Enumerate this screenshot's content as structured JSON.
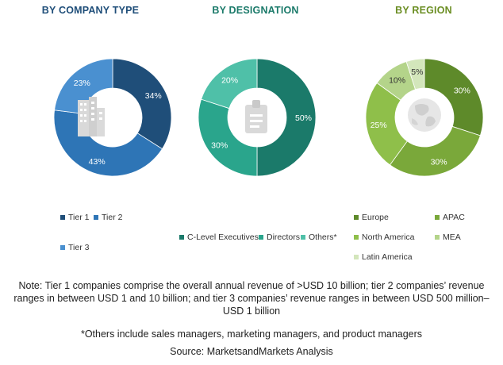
{
  "titles": {
    "company": "BY COMPANY TYPE",
    "designation": "BY DESIGNATION",
    "region": "BY REGION"
  },
  "colors": {
    "company_title": "#1f4e79",
    "designation_title": "#1b7a6a",
    "region_title": "#6b8e23"
  },
  "legends": {
    "company": [
      {
        "label": "Tier 1",
        "color": "#1f4e79"
      },
      {
        "label": "Tier 2",
        "color": "#2e75b6"
      },
      {
        "label": "Tier 3",
        "color": "#4a90d0"
      }
    ],
    "designation": [
      {
        "label": "C-Level Executives",
        "color": "#1b7a6a"
      },
      {
        "label": "Directors",
        "color": "#2aa58c"
      },
      {
        "label": "Others*",
        "color": "#4fc0a8"
      }
    ],
    "region": [
      {
        "label": "Europe",
        "color": "#5e8a2a"
      },
      {
        "label": "APAC",
        "color": "#7aa83a"
      },
      {
        "label": "North America",
        "color": "#8fbf4a"
      },
      {
        "label": "MEA",
        "color": "#b4d48a"
      },
      {
        "label": "Latin America",
        "color": "#d3e6bb"
      }
    ]
  },
  "notes": {
    "tier_note": "Note: Tier 1 companies comprise the overall annual revenue of >USD 10 billion; tier 2 companies’ revenue ranges in between USD 1 and 10 billion; and tier 3 companies’ revenue ranges in between USD 500 million–USD 1 billion",
    "others_note": "*Others include sales managers, marketing managers, and product managers",
    "source": "Source: MarketsandMarkets Analysis"
  },
  "icons": {
    "company": "buildings-icon",
    "designation": "id-badge-icon",
    "region": "globe-icon"
  },
  "chart_data": [
    {
      "type": "pie",
      "title": "BY COMPANY TYPE",
      "categories": [
        "Tier 1",
        "Tier 2",
        "Tier 3"
      ],
      "values": [
        34,
        43,
        23
      ],
      "labels": [
        "34%",
        "43%",
        "23%"
      ],
      "colors": [
        "#1f4e79",
        "#2e75b6",
        "#4a90d0"
      ]
    },
    {
      "type": "pie",
      "title": "BY DESIGNATION",
      "categories": [
        "C-Level Executives",
        "Directors",
        "Others*"
      ],
      "values": [
        50,
        30,
        20
      ],
      "labels": [
        "50%",
        "30%",
        "20%"
      ],
      "colors": [
        "#1b7a6a",
        "#2aa58c",
        "#4fc0a8"
      ]
    },
    {
      "type": "pie",
      "title": "BY REGION",
      "categories": [
        "Europe",
        "APAC",
        "North America",
        "MEA",
        "Latin America"
      ],
      "values": [
        30,
        30,
        25,
        10,
        5
      ],
      "labels": [
        "30%",
        "30%",
        "25%",
        "10%",
        "5%"
      ],
      "colors": [
        "#5e8a2a",
        "#7aa83a",
        "#8fbf4a",
        "#b4d48a",
        "#d3e6bb"
      ]
    }
  ]
}
